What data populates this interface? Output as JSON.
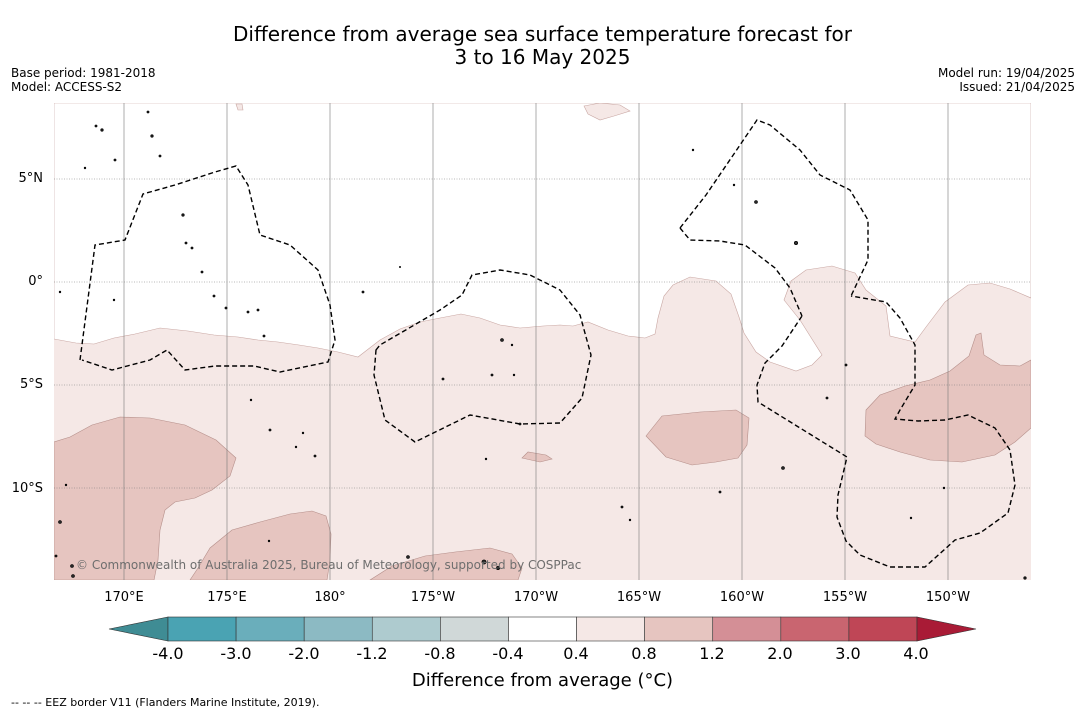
{
  "header": {
    "title_line1": "Difference from average sea surface temperature forecast for",
    "title_line2": "3 to 16 May 2025",
    "base_period": "Base period: 1981-2018",
    "model": "Model: ACCESS-S2",
    "model_run": "Model run: 19/04/2025",
    "issued": "Issued: 21/04/2025"
  },
  "map": {
    "lat_labels": [
      "5°N",
      "0°",
      "5°S",
      "10°S"
    ],
    "lon_labels": [
      "170°E",
      "175°E",
      "180°",
      "175°W",
      "170°W",
      "165°W",
      "160°W",
      "155°W",
      "150°W"
    ],
    "copyright": "© Commonwealth of Australia 2025, Bureau of Meteorology, supported by COSPPac",
    "colors": {
      "anomaly_0_4_to_0_8": "#f5e8e6",
      "anomaly_0_8_to_1_2": "#e6c5c0",
      "land": "#ffffff",
      "eez_border": "#000000"
    }
  },
  "colorbar": {
    "tick_labels": [
      "-4.0",
      "-3.0",
      "-2.0",
      "-1.2",
      "-0.8",
      "-0.4",
      "0.4",
      "0.8",
      "1.2",
      "2.0",
      "3.0",
      "4.0"
    ],
    "segment_colors": [
      "#3f8c94",
      "#4aa3b3",
      "#6aaebb",
      "#8cbac3",
      "#aecbcf",
      "#d0d8d8",
      "#ffffff",
      "#f5e8e6",
      "#e6c5c0",
      "#d48f96",
      "#c96570",
      "#bf4656",
      "#a91b36"
    ],
    "title": "Difference from average (°C)"
  },
  "footnote": "--  --  -- EEZ border V11 (Flanders Marine Institute, 2019)."
}
